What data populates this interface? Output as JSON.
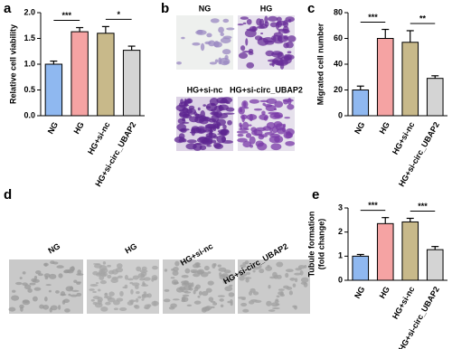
{
  "panels": [
    "a",
    "b",
    "c",
    "d",
    "e"
  ],
  "chart_data": [
    {
      "type": "bar",
      "y_label": "Relative cell viability",
      "categories": [
        "NG",
        "HG",
        "HG+si-nc",
        "HG+si-circ_UBAP2"
      ],
      "values": [
        1.0,
        1.63,
        1.6,
        1.27
      ],
      "errors": [
        0.06,
        0.08,
        0.13,
        0.08
      ],
      "colors": [
        "#8fb8f0",
        "#f5a3a3",
        "#c8b98a",
        "#d4d4d4"
      ],
      "ylim": [
        0,
        2
      ],
      "yticks": [
        {
          "value": 0,
          "label": "0.0"
        },
        0.5,
        {
          "value": 1,
          "label": "1.0"
        },
        1.5,
        {
          "value": 2,
          "label": "2.0"
        }
      ],
      "significance": [
        "***",
        "*"
      ]
    },
    {
      "type": "bar",
      "y_label": "Migrated cell number",
      "categories": [
        "NG",
        "HG",
        "HG+si-nc",
        "HG+si-circ_UBAP2"
      ],
      "values": [
        20,
        60,
        57,
        29
      ],
      "errors": [
        3,
        7,
        9,
        2
      ],
      "colors": [
        "#8fb8f0",
        "#f5a3a3",
        "#c8b98a",
        "#d4d4d4"
      ],
      "ylim": [
        0,
        80
      ],
      "yticks": [
        0,
        20,
        40,
        60,
        80
      ],
      "significance": [
        "***",
        "**"
      ]
    },
    {
      "type": "bar",
      "y_label": [
        "Tubule formation",
        "(fold change)"
      ],
      "categories": [
        "NG",
        "HG",
        "HG+si-nc",
        "HG+si-circ_UBAP2"
      ],
      "values": [
        1.0,
        2.35,
        2.42,
        1.27
      ],
      "errors": [
        0.07,
        0.25,
        0.15,
        0.13
      ],
      "colors": [
        "#8fb8f0",
        "#f5a3a3",
        "#c8b98a",
        "#d4d4d4"
      ],
      "ylim": [
        0,
        3
      ],
      "yticks": [
        0,
        1,
        2,
        3
      ],
      "significance": [
        "***",
        "***"
      ]
    }
  ],
  "images_b": {
    "labels": [
      "NG",
      "HG",
      "HG+si-nc",
      "HG+si-circ_UBAP2"
    ]
  },
  "images_d": {
    "labels": [
      "NG",
      "HG",
      "HG+si-nc",
      "HG+si-circ_UBAP2"
    ]
  }
}
